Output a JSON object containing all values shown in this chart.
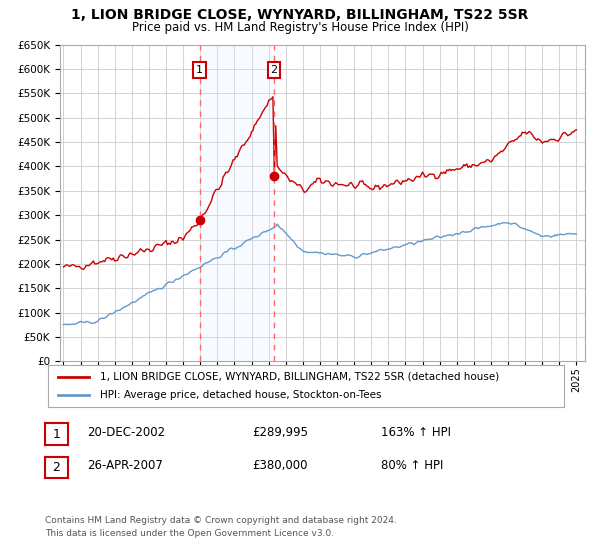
{
  "title": "1, LION BRIDGE CLOSE, WYNYARD, BILLINGHAM, TS22 5SR",
  "subtitle": "Price paid vs. HM Land Registry's House Price Index (HPI)",
  "legend_label_red": "1, LION BRIDGE CLOSE, WYNYARD, BILLINGHAM, TS22 5SR (detached house)",
  "legend_label_blue": "HPI: Average price, detached house, Stockton-on-Tees",
  "footnote1": "Contains HM Land Registry data © Crown copyright and database right 2024.",
  "footnote2": "This data is licensed under the Open Government Licence v3.0.",
  "marker1_label": "1",
  "marker1_date": "20-DEC-2002",
  "marker1_price": "£289,995",
  "marker1_hpi": "163% ↑ HPI",
  "marker2_label": "2",
  "marker2_date": "26-APR-2007",
  "marker2_price": "£380,000",
  "marker2_hpi": "80% ↑ HPI",
  "marker1_x": 2002.97,
  "marker1_y": 289995,
  "marker2_x": 2007.32,
  "marker2_y": 380000,
  "vline1_x": 2002.97,
  "vline2_x": 2007.32,
  "ylim": [
    0,
    650000
  ],
  "xlim_left": 1994.8,
  "xlim_right": 2025.5,
  "bg_color": "#ffffff",
  "plot_bg_color": "#ffffff",
  "grid_color": "#cccccc",
  "red_color": "#cc0000",
  "blue_color": "#6699cc",
  "shade_color": "#ddeeff",
  "vline_color": "#ff6666"
}
